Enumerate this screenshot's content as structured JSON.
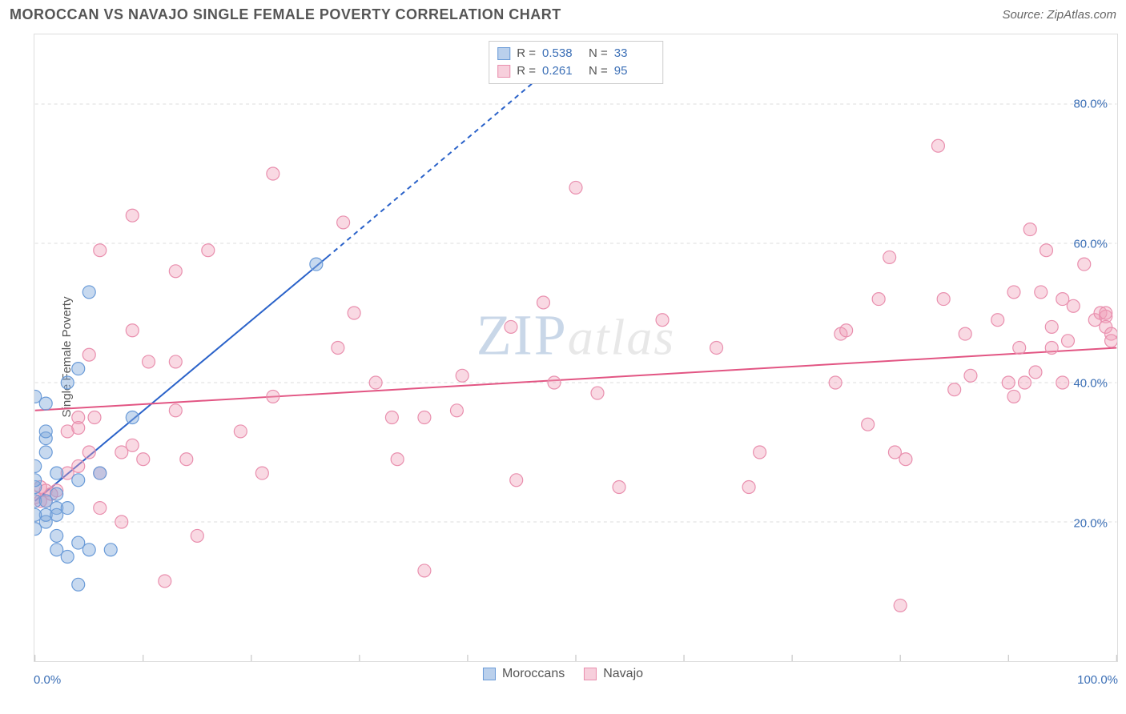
{
  "title": "MOROCCAN VS NAVAJO SINGLE FEMALE POVERTY CORRELATION CHART",
  "source": "Source: ZipAtlas.com",
  "ylabel": "Single Female Poverty",
  "watermark": {
    "zip": "ZIP",
    "atlas": "atlas"
  },
  "chart": {
    "type": "scatter",
    "xlim": [
      0,
      100
    ],
    "ylim": [
      0,
      90
    ],
    "x_ticks": [
      0,
      10,
      20,
      30,
      40,
      50,
      60,
      70,
      80,
      90,
      100
    ],
    "x_tick_labels": {
      "0": "0.0%",
      "100": "100.0%"
    },
    "y_ticks": [
      20,
      40,
      60,
      80
    ],
    "y_tick_labels": {
      "20": "20.0%",
      "40": "40.0%",
      "60": "60.0%",
      "80": "80.0%"
    },
    "grid_color": "#dddddd",
    "background_color": "#ffffff",
    "border_color": "#dddddd",
    "marker_radius": 8,
    "series": [
      {
        "name": "Moroccans",
        "color_fill": "rgba(130,170,220,0.45)",
        "color_stroke": "#6a9bd8",
        "r_value": "0.538",
        "n_value": "33",
        "trend": {
          "x1": 0,
          "y1": 23,
          "x2": 27,
          "y2": 58,
          "dash_x2": 46,
          "dash_y2": 83,
          "color": "#2a62c9",
          "width": 2
        },
        "points": [
          [
            5,
            53
          ],
          [
            0,
            38
          ],
          [
            1,
            37
          ],
          [
            4,
            42
          ],
          [
            2,
            22
          ],
          [
            3,
            22
          ],
          [
            1,
            20
          ],
          [
            0,
            19
          ],
          [
            1,
            21
          ],
          [
            2,
            21
          ],
          [
            0,
            23
          ],
          [
            1,
            23
          ],
          [
            2,
            24
          ],
          [
            2,
            27
          ],
          [
            4,
            26
          ],
          [
            6,
            27
          ],
          [
            9,
            35
          ],
          [
            4,
            17
          ],
          [
            2,
            16
          ],
          [
            3,
            15
          ],
          [
            5,
            16
          ],
          [
            7,
            16
          ],
          [
            4,
            11
          ],
          [
            26,
            57
          ],
          [
            1,
            30
          ],
          [
            1,
            32
          ],
          [
            0,
            25
          ],
          [
            0,
            26
          ],
          [
            0,
            28
          ],
          [
            1,
            33
          ],
          [
            3,
            40
          ],
          [
            0,
            21
          ],
          [
            2,
            18
          ]
        ]
      },
      {
        "name": "Navajo",
        "color_fill": "rgba(240,160,185,0.40)",
        "color_stroke": "#e98fae",
        "r_value": "0.261",
        "n_value": "95",
        "trend": {
          "x1": 0,
          "y1": 36,
          "x2": 100,
          "y2": 45,
          "color": "#e25583",
          "width": 2
        },
        "points": [
          [
            9,
            64
          ],
          [
            16,
            59
          ],
          [
            13,
            56
          ],
          [
            22,
            70
          ],
          [
            6,
            59
          ],
          [
            5,
            44
          ],
          [
            9,
            47.5
          ],
          [
            10.5,
            43
          ],
          [
            13,
            43
          ],
          [
            4,
            35
          ],
          [
            5.5,
            35
          ],
          [
            3,
            33
          ],
          [
            4,
            33.5
          ],
          [
            5,
            30
          ],
          [
            8,
            30
          ],
          [
            9,
            31
          ],
          [
            10,
            29
          ],
          [
            14,
            29
          ],
          [
            13,
            36
          ],
          [
            3,
            27
          ],
          [
            4,
            28
          ],
          [
            6,
            27
          ],
          [
            0.5,
            25
          ],
          [
            1,
            24.5
          ],
          [
            2,
            24.5
          ],
          [
            0,
            23.5
          ],
          [
            0.5,
            23
          ],
          [
            1,
            23
          ],
          [
            1.5,
            24
          ],
          [
            8,
            20
          ],
          [
            15,
            18
          ],
          [
            12,
            11.5
          ],
          [
            6,
            22
          ],
          [
            21,
            27
          ],
          [
            22,
            38
          ],
          [
            19,
            33
          ],
          [
            28,
            45
          ],
          [
            28.5,
            63
          ],
          [
            29.5,
            50
          ],
          [
            31.5,
            40
          ],
          [
            33.5,
            29
          ],
          [
            33,
            35
          ],
          [
            36,
            35
          ],
          [
            36,
            13
          ],
          [
            39,
            36
          ],
          [
            39.5,
            41
          ],
          [
            44,
            48
          ],
          [
            44.5,
            26
          ],
          [
            47,
            51.5
          ],
          [
            48,
            40
          ],
          [
            52,
            38.5
          ],
          [
            50,
            68
          ],
          [
            54,
            25
          ],
          [
            58,
            49
          ],
          [
            63,
            45
          ],
          [
            66,
            25
          ],
          [
            67,
            30
          ],
          [
            74,
            40
          ],
          [
            74.5,
            47
          ],
          [
            75,
            47.5
          ],
          [
            77,
            34
          ],
          [
            78,
            52
          ],
          [
            79,
            58
          ],
          [
            79.5,
            30
          ],
          [
            80,
            8
          ],
          [
            80.5,
            29
          ],
          [
            84,
            52
          ],
          [
            83.5,
            74
          ],
          [
            85,
            39
          ],
          [
            86,
            47
          ],
          [
            86.5,
            41
          ],
          [
            89,
            49
          ],
          [
            90,
            40
          ],
          [
            90.5,
            38
          ],
          [
            90.5,
            53
          ],
          [
            91,
            45
          ],
          [
            91.5,
            40
          ],
          [
            92,
            62
          ],
          [
            92.5,
            41.5
          ],
          [
            93,
            53
          ],
          [
            93.5,
            59
          ],
          [
            94,
            45
          ],
          [
            94,
            48
          ],
          [
            95,
            52
          ],
          [
            95,
            40
          ],
          [
            95.5,
            46
          ],
          [
            96,
            51
          ],
          [
            97,
            57
          ],
          [
            98,
            49
          ],
          [
            98.5,
            50
          ],
          [
            99,
            49.5
          ],
          [
            99,
            50
          ],
          [
            99,
            48
          ],
          [
            99.5,
            47
          ],
          [
            99.5,
            46
          ]
        ]
      }
    ]
  },
  "legend": {
    "items": [
      {
        "label": "Moroccans",
        "fill": "rgba(130,170,220,0.55)",
        "stroke": "#6a9bd8"
      },
      {
        "label": "Navajo",
        "fill": "rgba(240,160,185,0.50)",
        "stroke": "#e98fae"
      }
    ]
  },
  "stats_labels": {
    "r": "R =",
    "n": "N ="
  }
}
